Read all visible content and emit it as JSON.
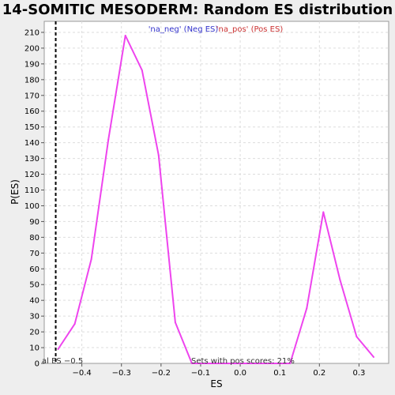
{
  "chart_data": {
    "type": "line",
    "title": "14-SOMITIC MESODERM: Random ES distribution",
    "xlabel": "ES",
    "ylabel": "P(ES)",
    "xlim": [
      -0.495,
      0.375
    ],
    "ylim": [
      0,
      217
    ],
    "x_ticks": [
      -0.4,
      -0.3,
      -0.2,
      -0.1,
      0.0,
      0.1,
      0.2,
      0.3
    ],
    "x_tick_labels": [
      "−0.4",
      "−0.3",
      "−0.2",
      "−0.1",
      "0.0",
      "0.1",
      "0.2",
      "0.3"
    ],
    "y_ticks": [
      0,
      10,
      20,
      30,
      40,
      50,
      60,
      70,
      80,
      90,
      100,
      110,
      120,
      130,
      140,
      150,
      160,
      170,
      180,
      190,
      200,
      210
    ],
    "grid": true,
    "legend": {
      "placement": "top-center",
      "entries": [
        {
          "label": "'na_neg' (Neg ES)",
          "color": "#3333cc"
        },
        {
          "label": "'na_pos' (Pos ES)",
          "color": "#cc3333"
        }
      ]
    },
    "series": [
      {
        "color": "#ee44ee",
        "x": [
          -0.46,
          -0.418,
          -0.376,
          -0.333,
          -0.29,
          -0.248,
          -0.206,
          -0.164,
          -0.122,
          0.126,
          0.168,
          0.21,
          0.252,
          0.294,
          0.337
        ],
        "y": [
          9,
          25,
          66,
          142,
          208,
          186,
          132,
          26,
          0,
          0,
          35,
          96,
          53,
          17,
          4
        ]
      }
    ],
    "marker_line": {
      "x": -0.466,
      "style": "dashed",
      "color": "#000000",
      "label": "al ES −0.5"
    },
    "annotation": "Sets with pos scores: 21%"
  }
}
